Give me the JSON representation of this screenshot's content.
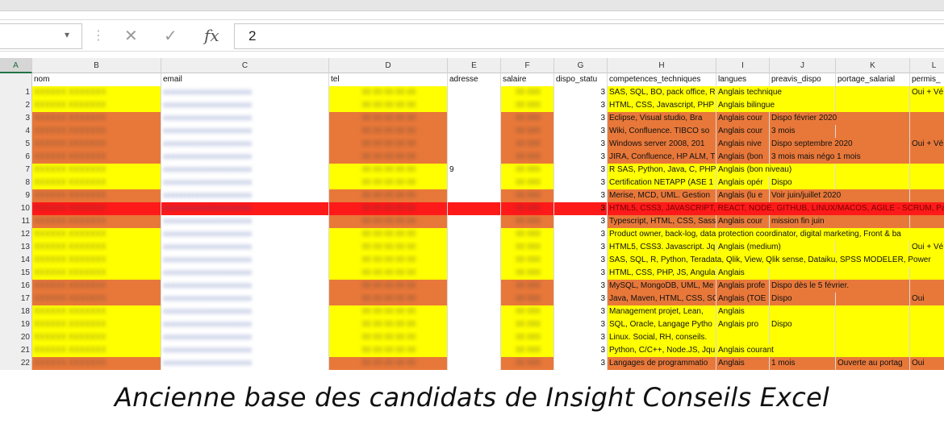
{
  "formula_bar": {
    "cancel_icon": "close-x-icon",
    "enter_icon": "checkmark-icon",
    "fx_label": "fx",
    "value": "2"
  },
  "columns": [
    {
      "letter": "A",
      "header": ""
    },
    {
      "letter": "B",
      "header": "nom"
    },
    {
      "letter": "C",
      "header": "email"
    },
    {
      "letter": "D",
      "header": "tel"
    },
    {
      "letter": "E",
      "header": "adresse"
    },
    {
      "letter": "F",
      "header": "salaire"
    },
    {
      "letter": "G",
      "header": "dispo_statu"
    },
    {
      "letter": "H",
      "header": "competences_techniques"
    },
    {
      "letter": "I",
      "header": "langues"
    },
    {
      "letter": "J",
      "header": "preavis_dispo"
    },
    {
      "letter": "K",
      "header": "portage_salarial"
    },
    {
      "letter": "L",
      "header": "permis_"
    }
  ],
  "colors": {
    "yellow": "#ffff00",
    "orange": "#e8783a",
    "red": "#ff1a1a",
    "light_orange": "#f2a06a",
    "excel_green": "#217346"
  },
  "rows": [
    {
      "n": "1",
      "a": "1",
      "e": "",
      "g": "3",
      "h": "SAS, SQL, BO, pack office, R",
      "i": "Anglais technique",
      "j": "",
      "k": "",
      "l": "Oui + Vé",
      "fill": "yellow"
    },
    {
      "n": "2",
      "a": "2",
      "e": "",
      "g": "3",
      "h": "HTML, CSS, Javascript, PHP",
      "i": "Anglais bilingue",
      "j": "",
      "k": "",
      "l": "",
      "fill": "yellow"
    },
    {
      "n": "3",
      "a": "3",
      "e": "",
      "g": "3",
      "h": "Eclipse, Visual studio, Bra",
      "i": "Anglais cour",
      "j": "Dispo février 2020",
      "k": "",
      "l": "",
      "fill": "orange"
    },
    {
      "n": "4",
      "a": "4",
      "e": "",
      "g": "3",
      "h": "Wiki, Confluence. TIBCO so",
      "i": "Anglais cour",
      "j": "3 mois",
      "k": "",
      "l": "",
      "fill": "orange"
    },
    {
      "n": "5",
      "a": "5",
      "e": "",
      "g": "3",
      "h": "Windows server 2008, 201",
      "i": "Anglais nive",
      "j": "Dispo septembre 2020",
      "k": "",
      "l": "Oui + Vé",
      "fill": "orange"
    },
    {
      "n": "6",
      "a": "6",
      "e": "",
      "g": "3",
      "h": "JIRA, Confluence, HP ALM, T",
      "i": "Anglais (bon",
      "j": "3 mois mais négo 1 mois",
      "k": "",
      "l": "",
      "fill": "orange"
    },
    {
      "n": "7",
      "a": "7",
      "e": "9",
      "g": "3",
      "h": "R SAS, Python, Java, C, PHP",
      "i": "Anglais (bon niveau)",
      "j": "",
      "k": "",
      "l": "",
      "fill": "yellow"
    },
    {
      "n": "8",
      "a": "8",
      "e": "",
      "g": "3",
      "h": "Certification NETAPP (ASE 1",
      "i": "Anglais opér",
      "j": "Dispo",
      "k": "",
      "l": "",
      "fill": "yellow"
    },
    {
      "n": "9",
      "a": "9",
      "e": "",
      "g": "3",
      "h": "Merise, MCD, UML. Gestion",
      "i": "Anglais (lu e",
      "j": "Voir juin/juillet 2020",
      "k": "",
      "l": "",
      "fill": "orange"
    },
    {
      "n": "10",
      "a": "10",
      "e": "",
      "g": "3",
      "h": "HTML5, CSS3, JAVASCRIPT, REACT, NODE, GITHUB, LINUX/MACOS, AGILE - SCRUM, Pair",
      "i": "",
      "j": "",
      "k": "",
      "l": "",
      "fill": "red"
    },
    {
      "n": "11",
      "a": "11",
      "e": "",
      "g": "3",
      "h": "Typescript, HTML, CSS, Sass",
      "i": "Anglais cour",
      "j": "mission fin juin",
      "k": "",
      "l": "",
      "fill": "orange"
    },
    {
      "n": "12",
      "a": "12",
      "e": "",
      "g": "3",
      "h": "Product owner, back-log, data protection coordinator, digital marketing, Front & ba",
      "i": "",
      "j": "",
      "k": "",
      "l": "",
      "fill": "yellow"
    },
    {
      "n": "13",
      "a": "13",
      "e": "",
      "g": "3",
      "h": "HTML5, CSS3. Javascript. Jq",
      "i": "Anglais (medium)",
      "j": "",
      "k": "",
      "l": "Oui + Vé",
      "fill": "yellow"
    },
    {
      "n": "14",
      "a": "14",
      "e": "",
      "g": "3",
      "h": "SAS, SQL, R, Python, Teradata, Qlik, View, Qlik sense, Dataiku, SPSS MODELER, Power",
      "i": "",
      "j": "",
      "k": "",
      "l": "",
      "fill": "yellow"
    },
    {
      "n": "15",
      "a": "15",
      "e": "",
      "g": "3",
      "h": "HTML, CSS, PHP, JS, Angular",
      "i": "Anglais",
      "j": "",
      "k": "",
      "l": "",
      "fill": "yellow"
    },
    {
      "n": "16",
      "a": "16",
      "e": "",
      "g": "3",
      "h": "MySQL, MongoDB, UML, Me",
      "i": "Anglais profe",
      "j": "Dispo dès le 5 février.",
      "k": "",
      "l": "",
      "fill": "orange"
    },
    {
      "n": "17",
      "a": "17",
      "e": "",
      "g": "3",
      "h": "Java, Maven, HTML, CSS, SC",
      "i": "Anglais (TOE",
      "j": "Dispo",
      "k": "",
      "l": "Oui",
      "fill": "orange"
    },
    {
      "n": "18",
      "a": "18",
      "e": "",
      "g": "3",
      "h": "Management projet, Lean,",
      "i": "Anglais",
      "j": "",
      "k": "",
      "l": "",
      "fill": "yellow"
    },
    {
      "n": "19",
      "a": "19",
      "e": "",
      "g": "3",
      "h": "SQL, Oracle, Langage Pytho",
      "i": "Anglais pro",
      "j": "Dispo",
      "k": "",
      "l": "",
      "fill": "yellow"
    },
    {
      "n": "20",
      "a": "20",
      "e": "",
      "g": "3",
      "h": "Linux. Social, RH, conseils.",
      "i": "",
      "j": "",
      "k": "",
      "l": "",
      "fill": "yellow"
    },
    {
      "n": "21",
      "a": "21",
      "e": "",
      "g": "3",
      "h": "Python, C/C++, Node.JS, Jqu",
      "i": "Anglais courant",
      "j": "",
      "k": "",
      "l": "",
      "fill": "yellow"
    },
    {
      "n": "22",
      "a": "22",
      "e": "",
      "g": "3",
      "h": "Langages de programmatio",
      "i": "Anglais",
      "j": "1 mois",
      "k": "Ouverte au portag",
      "l": "Oui",
      "fill": "orange"
    }
  ],
  "caption": "Ancienne base des candidats de Insight Conseils Excel"
}
